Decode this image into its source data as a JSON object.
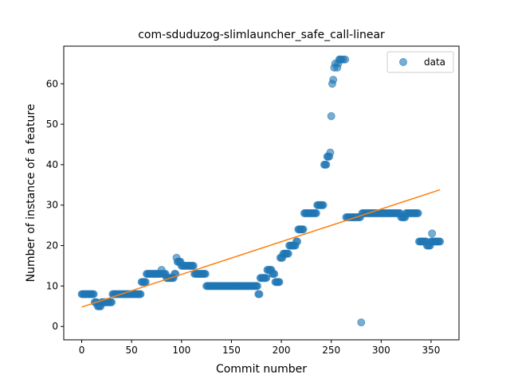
{
  "chart_data": {
    "type": "scatter",
    "title": "com-sduduzog-slimlauncher_safe_call-linear",
    "xlabel": "Commit number",
    "ylabel": "Number of instance of a feature",
    "xlim": [
      -18,
      378
    ],
    "ylim": [
      -3.3,
      69.3
    ],
    "xticks": [
      0,
      50,
      100,
      150,
      200,
      250,
      300,
      350
    ],
    "yticks": [
      0,
      10,
      20,
      30,
      40,
      50,
      60
    ],
    "grid": false,
    "legend": {
      "position": "top-right",
      "entries": [
        "data"
      ]
    },
    "colors": {
      "points": "#1f77b4",
      "fit": "#ff7f0e"
    },
    "series": [
      {
        "name": "data",
        "kind": "scatter",
        "segments": [
          [
            0,
            12,
            8
          ],
          [
            13,
            15,
            6
          ],
          [
            16,
            19,
            5
          ],
          [
            20,
            30,
            6
          ],
          [
            31,
            59,
            8
          ],
          [
            60,
            64,
            11
          ],
          [
            65,
            79,
            13
          ],
          [
            80,
            80,
            14
          ],
          [
            81,
            84,
            13
          ],
          [
            85,
            92,
            12
          ],
          [
            93,
            94,
            13
          ],
          [
            95,
            95,
            17
          ],
          [
            96,
            97,
            16
          ],
          [
            98,
            99,
            16
          ],
          [
            100,
            112,
            15
          ],
          [
            113,
            124,
            13
          ],
          [
            125,
            176,
            10
          ],
          [
            177,
            178,
            8
          ],
          [
            179,
            185,
            12
          ],
          [
            186,
            190,
            14
          ],
          [
            191,
            193,
            13
          ],
          [
            194,
            198,
            11
          ],
          [
            199,
            201,
            17
          ],
          [
            202,
            207,
            18
          ],
          [
            208,
            214,
            20
          ],
          [
            215,
            216,
            21
          ],
          [
            217,
            222,
            24
          ],
          [
            223,
            235,
            28
          ],
          [
            236,
            242,
            30
          ],
          [
            243,
            245,
            40
          ],
          [
            246,
            248,
            42
          ],
          [
            265,
            279,
            27
          ],
          [
            281,
            319,
            28
          ],
          [
            320,
            324,
            27
          ],
          [
            325,
            337,
            28
          ],
          [
            338,
            345,
            21
          ],
          [
            346,
            349,
            20
          ],
          [
            350,
            359,
            21
          ]
        ],
        "points": [
          [
            249,
            43
          ],
          [
            250,
            52
          ],
          [
            251,
            60
          ],
          [
            252,
            61
          ],
          [
            253,
            64
          ],
          [
            254,
            65
          ],
          [
            256,
            64
          ],
          [
            257,
            65
          ],
          [
            258,
            66
          ],
          [
            259,
            66
          ],
          [
            260,
            66
          ],
          [
            262,
            66
          ],
          [
            264,
            66
          ],
          [
            280,
            1
          ],
          [
            351,
            23
          ]
        ]
      },
      {
        "name": "",
        "kind": "line",
        "x": [
          0,
          359
        ],
        "y": [
          4.8,
          33.8
        ]
      }
    ]
  }
}
